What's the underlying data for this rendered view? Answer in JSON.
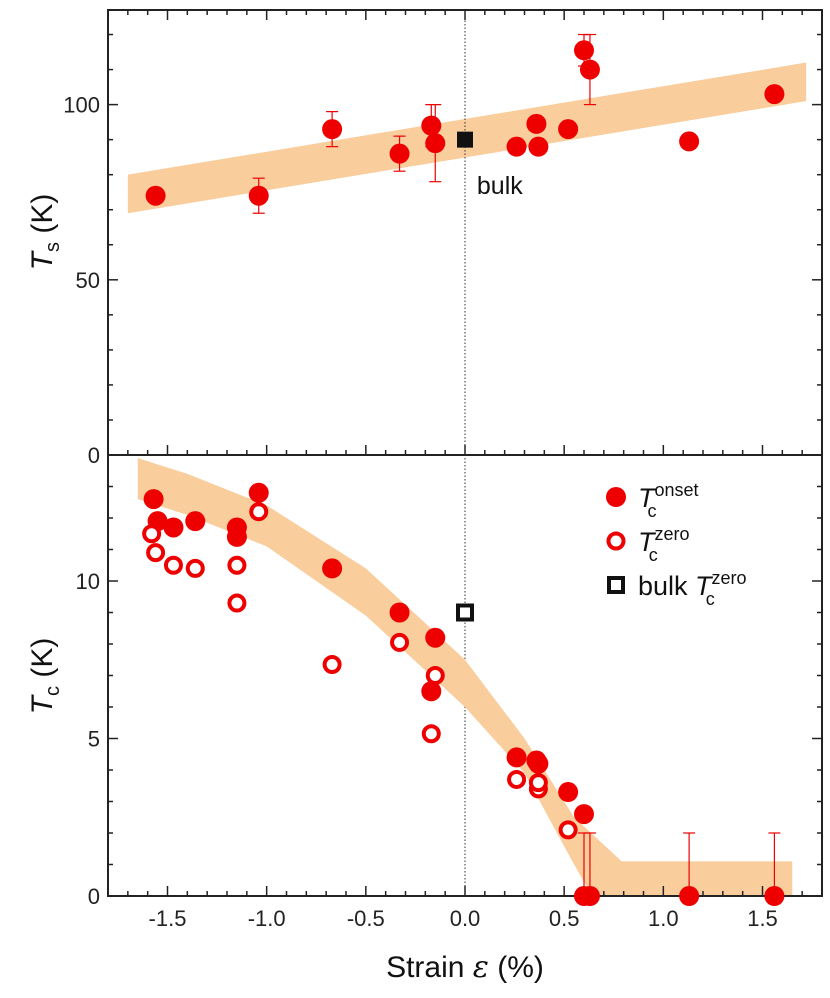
{
  "chart_data": [
    {
      "type": "scatter",
      "panel": "top",
      "ylabel_main": "T",
      "ylabel_sub": "s",
      "ylabel_unit": " (K)",
      "xlim": [
        -1.8,
        1.8
      ],
      "ylim": [
        0,
        127
      ],
      "yticks": [
        0,
        50,
        100
      ],
      "band": [
        [
          -1.7,
          74.5
        ],
        [
          1.72,
          106.5
        ]
      ],
      "band_halfwidth": 5.5,
      "color": "#ee0000",
      "band_color": "#f9cd9c",
      "series": [
        {
          "name": "Ts",
          "points": [
            {
              "x": -1.56,
              "y": 74,
              "err": 0
            },
            {
              "x": -1.04,
              "y": 74,
              "err": 5
            },
            {
              "x": -0.67,
              "y": 93,
              "err": 5
            },
            {
              "x": -0.33,
              "y": 86,
              "err": 5
            },
            {
              "x": -0.17,
              "y": 94,
              "err": 6
            },
            {
              "x": -0.15,
              "y": 89,
              "err": 11
            },
            {
              "x": 0.26,
              "y": 88,
              "err": 0
            },
            {
              "x": 0.36,
              "y": 94.5,
              "err": 0
            },
            {
              "x": 0.37,
              "y": 88,
              "err": 0
            },
            {
              "x": 0.52,
              "y": 93,
              "err": 0
            },
            {
              "x": 0.6,
              "y": 115.5,
              "err": 4.5
            },
            {
              "x": 0.63,
              "y": 110,
              "err": 10
            },
            {
              "x": 1.13,
              "y": 89.5,
              "err": 0
            },
            {
              "x": 1.56,
              "y": 103,
              "err": 0
            }
          ]
        }
      ],
      "bulk_point": {
        "x": 0.0,
        "y": 90
      },
      "annotation": {
        "text": "bulk",
        "x": 0.06,
        "y": 77
      }
    },
    {
      "type": "scatter",
      "panel": "bottom",
      "xlabel_main": "Strain ",
      "xlabel_sym": "ε",
      "xlabel_unit": " (%)",
      "ylabel_main": "T",
      "ylabel_sub": "c",
      "ylabel_unit": " (K)",
      "xlim": [
        -1.8,
        1.8
      ],
      "ylim": [
        0,
        14
      ],
      "yticks": [
        0,
        5,
        10
      ],
      "xticks": [
        -1.5,
        -1.0,
        -0.5,
        0.0,
        0.5,
        1.0,
        1.5
      ],
      "xtick_labels": [
        "-1.5",
        "-1.0",
        "-0.5",
        "0.0",
        "0.5",
        "1.0",
        "1.5"
      ],
      "band_upper": [
        [
          -1.65,
          13.9
        ],
        [
          -1.4,
          13.4
        ],
        [
          -1.0,
          12.4
        ],
        [
          -0.5,
          10.4
        ],
        [
          0.0,
          7.5
        ],
        [
          0.3,
          5.0
        ],
        [
          0.55,
          2.5
        ],
        [
          0.79,
          1.1
        ],
        [
          1.65,
          1.1
        ]
      ],
      "band_lower": [
        [
          -1.65,
          12.6
        ],
        [
          -1.4,
          12.1
        ],
        [
          -1.0,
          11.1
        ],
        [
          -0.5,
          8.9
        ],
        [
          0.0,
          6.0
        ],
        [
          0.3,
          3.9
        ],
        [
          0.55,
          1.0
        ],
        [
          0.64,
          0.0
        ],
        [
          1.65,
          0.0
        ]
      ],
      "color": "#ee0000",
      "band_color": "#f9cd9c",
      "series": [
        {
          "name": "Tc onset",
          "marker": "filled",
          "points": [
            {
              "x": -1.57,
              "y": 12.6,
              "err": 0
            },
            {
              "x": -1.55,
              "y": 11.9,
              "err": 0
            },
            {
              "x": -1.47,
              "y": 11.7,
              "err": 0
            },
            {
              "x": -1.36,
              "y": 11.9,
              "err": 0
            },
            {
              "x": -1.15,
              "y": 11.7,
              "err": 0
            },
            {
              "x": -1.15,
              "y": 11.4,
              "err": 0
            },
            {
              "x": -1.04,
              "y": 12.8,
              "err": 0
            },
            {
              "x": -0.67,
              "y": 10.4,
              "err": 0
            },
            {
              "x": -0.33,
              "y": 9.0,
              "err": 0
            },
            {
              "x": -0.15,
              "y": 8.2,
              "err": 0
            },
            {
              "x": -0.17,
              "y": 6.5,
              "err": 0
            },
            {
              "x": 0.26,
              "y": 4.4,
              "err": 0
            },
            {
              "x": 0.36,
              "y": 4.3,
              "err": 0
            },
            {
              "x": 0.37,
              "y": 4.2,
              "err": 0
            },
            {
              "x": 0.52,
              "y": 3.3,
              "err": 0
            },
            {
              "x": 0.6,
              "y": 2.6,
              "err": 0
            },
            {
              "x": 0.6,
              "y": 0,
              "err": 2
            },
            {
              "x": 0.63,
              "y": 0,
              "err": 2
            },
            {
              "x": 1.13,
              "y": 0,
              "err": 2
            },
            {
              "x": 1.56,
              "y": 0,
              "err": 2
            }
          ]
        },
        {
          "name": "Tc zero",
          "marker": "open",
          "points": [
            {
              "x": -1.58,
              "y": 11.5
            },
            {
              "x": -1.56,
              "y": 10.9
            },
            {
              "x": -1.47,
              "y": 10.5
            },
            {
              "x": -1.36,
              "y": 10.4
            },
            {
              "x": -1.15,
              "y": 10.5
            },
            {
              "x": -1.15,
              "y": 9.3
            },
            {
              "x": -1.04,
              "y": 12.2
            },
            {
              "x": -0.67,
              "y": 7.35
            },
            {
              "x": -0.33,
              "y": 8.05
            },
            {
              "x": -0.15,
              "y": 7.0
            },
            {
              "x": -0.17,
              "y": 5.15
            },
            {
              "x": 0.26,
              "y": 3.7
            },
            {
              "x": 0.37,
              "y": 3.4
            },
            {
              "x": 0.37,
              "y": 3.6
            },
            {
              "x": 0.52,
              "y": 2.1
            }
          ]
        }
      ],
      "bulk_point": {
        "x": 0.0,
        "y": 9.0
      },
      "legend": {
        "position": "top-right",
        "items": [
          {
            "marker": "filled",
            "main": "T",
            "sub": "c",
            "sup": "onset",
            "prefix": ""
          },
          {
            "marker": "open",
            "main": "T",
            "sub": "c",
            "sup": "zero",
            "prefix": ""
          },
          {
            "marker": "square-open",
            "main": "T",
            "sub": "c",
            "sup": "zero",
            "prefix": "bulk "
          }
        ]
      }
    }
  ]
}
